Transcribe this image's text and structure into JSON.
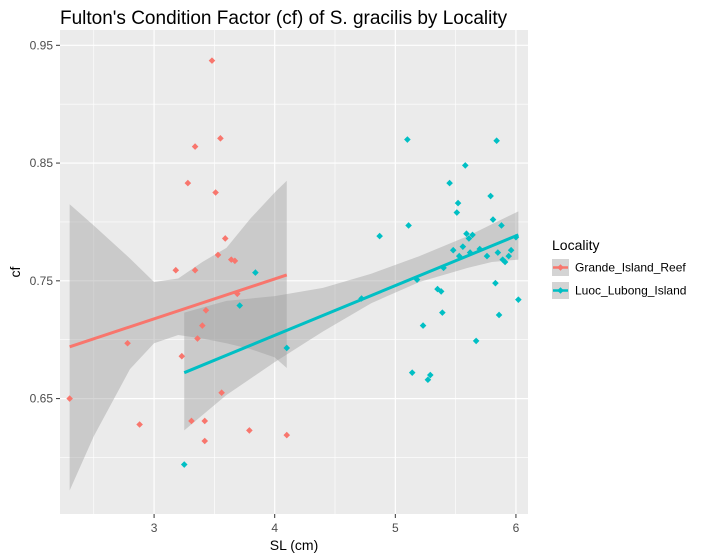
{
  "chart_data": {
    "type": "scatter",
    "title": "Fulton's Condition Factor (cf) of S. gracilis by Locality",
    "xlabel": "SL (cm)",
    "ylabel": "cf",
    "xlim": [
      2.22,
      6.1
    ],
    "ylim": [
      0.552,
      0.963
    ],
    "x_ticks": [
      {
        "value": 3,
        "label": "3"
      },
      {
        "value": 4,
        "label": "4"
      },
      {
        "value": 5,
        "label": "5"
      },
      {
        "value": 6,
        "label": "6"
      }
    ],
    "y_ticks": [
      {
        "value": 0.65,
        "label": "0.65"
      },
      {
        "value": 0.75,
        "label": "0.75"
      },
      {
        "value": 0.85,
        "label": "0.85"
      },
      {
        "value": 0.95,
        "label": "0.95"
      }
    ],
    "grid": true,
    "legend_title": "Locality",
    "legend_position": "right",
    "series": [
      {
        "name": "Grande_Island_Reef",
        "color": "#F8766D",
        "points": [
          [
            2.3,
            0.65
          ],
          [
            2.78,
            0.697
          ],
          [
            2.88,
            0.628
          ],
          [
            3.18,
            0.759
          ],
          [
            3.23,
            0.686
          ],
          [
            3.28,
            0.833
          ],
          [
            3.31,
            0.631
          ],
          [
            3.34,
            0.759
          ],
          [
            3.34,
            0.864
          ],
          [
            3.36,
            0.701
          ],
          [
            3.4,
            0.712
          ],
          [
            3.42,
            0.631
          ],
          [
            3.42,
            0.614
          ],
          [
            3.43,
            0.725
          ],
          [
            3.48,
            0.937
          ],
          [
            3.51,
            0.825
          ],
          [
            3.53,
            0.772
          ],
          [
            3.55,
            0.871
          ],
          [
            3.56,
            0.655
          ],
          [
            3.59,
            0.786
          ],
          [
            3.64,
            0.768
          ],
          [
            3.67,
            0.767
          ],
          [
            3.69,
            0.739
          ],
          [
            3.79,
            0.623
          ],
          [
            4.1,
            0.619
          ]
        ],
        "trend": {
          "x": [
            2.3,
            4.1
          ],
          "y": [
            0.694,
            0.755
          ]
        },
        "ci_band": {
          "x": [
            2.3,
            2.5,
            2.8,
            3.0,
            3.2,
            3.4,
            3.6,
            3.8,
            4.0,
            4.1
          ],
          "lower": [
            0.572,
            0.618,
            0.675,
            0.697,
            0.704,
            0.701,
            0.697,
            0.692,
            0.685,
            0.676
          ],
          "upper": [
            0.815,
            0.797,
            0.769,
            0.749,
            0.752,
            0.766,
            0.778,
            0.803,
            0.825,
            0.835
          ]
        }
      },
      {
        "name": "Luoc_Lubong_Island",
        "color": "#00BFC4",
        "points": [
          [
            3.25,
            0.594
          ],
          [
            3.71,
            0.729
          ],
          [
            3.84,
            0.757
          ],
          [
            4.1,
            0.693
          ],
          [
            4.72,
            0.735
          ],
          [
            4.87,
            0.788
          ],
          [
            5.1,
            0.87
          ],
          [
            5.11,
            0.797
          ],
          [
            5.14,
            0.672
          ],
          [
            5.18,
            0.751
          ],
          [
            5.23,
            0.712
          ],
          [
            5.27,
            0.666
          ],
          [
            5.29,
            0.67
          ],
          [
            5.35,
            0.743
          ],
          [
            5.38,
            0.741
          ],
          [
            5.39,
            0.723
          ],
          [
            5.4,
            0.761
          ],
          [
            5.45,
            0.833
          ],
          [
            5.48,
            0.776
          ],
          [
            5.51,
            0.808
          ],
          [
            5.52,
            0.816
          ],
          [
            5.53,
            0.771
          ],
          [
            5.56,
            0.779
          ],
          [
            5.58,
            0.848
          ],
          [
            5.59,
            0.79
          ],
          [
            5.61,
            0.786
          ],
          [
            5.62,
            0.774
          ],
          [
            5.64,
            0.789
          ],
          [
            5.67,
            0.699
          ],
          [
            5.7,
            0.777
          ],
          [
            5.76,
            0.771
          ],
          [
            5.79,
            0.822
          ],
          [
            5.81,
            0.802
          ],
          [
            5.83,
            0.748
          ],
          [
            5.84,
            0.869
          ],
          [
            5.85,
            0.774
          ],
          [
            5.86,
            0.721
          ],
          [
            5.88,
            0.797
          ],
          [
            5.89,
            0.768
          ],
          [
            5.91,
            0.766
          ],
          [
            5.94,
            0.771
          ],
          [
            5.96,
            0.776
          ],
          [
            6.0,
            0.787
          ],
          [
            6.02,
            0.734
          ]
        ],
        "trend": {
          "x": [
            3.25,
            6.02
          ],
          "y": [
            0.672,
            0.789
          ]
        },
        "ci_band": {
          "x": [
            3.25,
            3.6,
            4.0,
            4.4,
            4.8,
            5.2,
            5.6,
            5.8,
            6.02
          ],
          "lower": [
            0.623,
            0.653,
            0.681,
            0.707,
            0.731,
            0.749,
            0.761,
            0.766,
            0.768
          ],
          "upper": [
            0.723,
            0.733,
            0.737,
            0.744,
            0.756,
            0.771,
            0.788,
            0.798,
            0.809
          ]
        }
      }
    ]
  }
}
